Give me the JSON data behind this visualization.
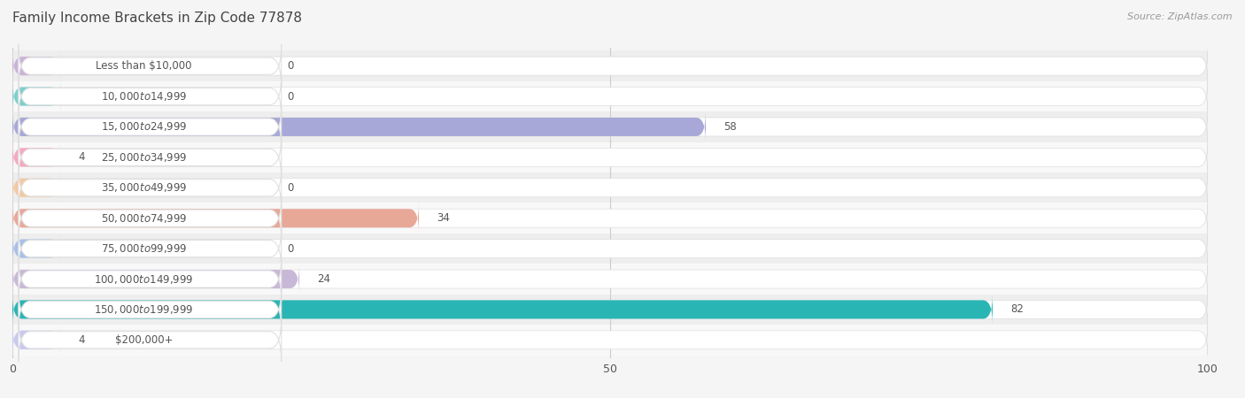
{
  "title": "Family Income Brackets in Zip Code 77878",
  "source": "Source: ZipAtlas.com",
  "categories": [
    "Less than $10,000",
    "$10,000 to $14,999",
    "$15,000 to $24,999",
    "$25,000 to $34,999",
    "$35,000 to $49,999",
    "$50,000 to $74,999",
    "$75,000 to $99,999",
    "$100,000 to $149,999",
    "$150,000 to $199,999",
    "$200,000+"
  ],
  "values": [
    0,
    0,
    58,
    4,
    0,
    34,
    0,
    24,
    82,
    4
  ],
  "bar_colors": [
    "#c9b3d9",
    "#7ecfcf",
    "#a8a8d8",
    "#f5a8be",
    "#f5c8a0",
    "#e8a898",
    "#a8c0e8",
    "#c8b8d8",
    "#2ab5b5",
    "#c8c8f0"
  ],
  "xlim": [
    0,
    100
  ],
  "xticks": [
    0,
    50,
    100
  ],
  "background_color": "#f5f5f5",
  "row_even_color": "#eeeeee",
  "row_odd_color": "#f8f8f8",
  "bar_height": 0.6,
  "bar_bg_color": "#ffffff",
  "title_fontsize": 11,
  "label_fontsize": 8.5,
  "value_fontsize": 8.5,
  "title_color": "#444444",
  "label_color": "#555555",
  "grid_color": "#cccccc",
  "source_color": "#999999"
}
